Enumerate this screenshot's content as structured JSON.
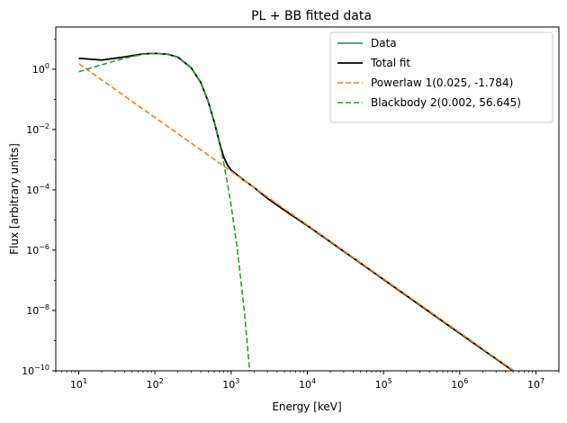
{
  "chart_data": {
    "type": "line",
    "title": "PL + BB fitted data",
    "xlabel": "Energy [keV]",
    "ylabel": "Flux [arbitrary units]",
    "xscale": "log",
    "yscale": "log",
    "xlim": [
      5,
      20000000
    ],
    "ylim": [
      1e-10,
      25
    ],
    "grid": false,
    "legend_position": "top-right",
    "x_ticks": [
      {
        "base": "10",
        "exp": "1",
        "value": 10
      },
      {
        "base": "10",
        "exp": "2",
        "value": 100
      },
      {
        "base": "10",
        "exp": "3",
        "value": 1000
      },
      {
        "base": "10",
        "exp": "4",
        "value": 10000
      },
      {
        "base": "10",
        "exp": "5",
        "value": 100000
      },
      {
        "base": "10",
        "exp": "6",
        "value": 1000000
      },
      {
        "base": "10",
        "exp": "7",
        "value": 10000000
      }
    ],
    "y_ticks": [
      {
        "base": "10",
        "exp": "0",
        "value": 1
      },
      {
        "base": "10",
        "exp": "−2",
        "value": 0.01
      },
      {
        "base": "10",
        "exp": "−4",
        "value": 0.0001
      },
      {
        "base": "10",
        "exp": "−6",
        "value": 1e-06
      },
      {
        "base": "10",
        "exp": "−8",
        "value": 1e-08
      },
      {
        "base": "10",
        "exp": "−10",
        "value": 1e-10
      }
    ],
    "series": [
      {
        "name": "Data",
        "color": "#1f77b4",
        "style": "solid",
        "x": [
          10,
          20,
          40,
          70,
          100,
          150,
          200,
          300,
          400,
          500,
          600,
          700,
          800,
          900,
          1000,
          1200,
          1500,
          2000,
          3000,
          5000,
          10000,
          100000,
          1000000,
          5000000
        ],
        "y": [
          2.3,
          2.0,
          2.55,
          3.2,
          3.35,
          3.1,
          2.5,
          1.1,
          0.36,
          0.085,
          0.018,
          0.0038,
          0.0012,
          0.00065,
          0.00045,
          0.00031,
          0.0002,
          0.00012,
          5.2e-05,
          2.1e-05,
          6.5e-06,
          1.07e-07,
          1.74e-09,
          1e-10
        ]
      },
      {
        "name": "Total fit",
        "color": "#000000",
        "style": "solid",
        "x": [
          10,
          20,
          40,
          70,
          100,
          150,
          200,
          300,
          400,
          500,
          600,
          700,
          800,
          900,
          1000,
          1200,
          1500,
          2000,
          3000,
          5000,
          10000,
          100000,
          1000000,
          5000000
        ],
        "y": [
          2.3,
          2.0,
          2.55,
          3.2,
          3.35,
          3.1,
          2.5,
          1.1,
          0.36,
          0.085,
          0.018,
          0.0038,
          0.0012,
          0.00065,
          0.00045,
          0.00031,
          0.0002,
          0.00012,
          5.2e-05,
          2.1e-05,
          6.5e-06,
          1.07e-07,
          1.74e-09,
          1e-10
        ]
      },
      {
        "name": "Powerlaw 1(0.025, -1.784)",
        "color": "#ff7f0e",
        "style": "dashed",
        "x": [
          10,
          100,
          1000,
          10000,
          100000,
          1000000,
          5000000
        ],
        "y": [
          1.52,
          0.025,
          0.00041,
          6.8e-06,
          1.12e-07,
          1.84e-09,
          1.05e-10
        ]
      },
      {
        "name": "Blackbody 2(0.002, 56.645)",
        "color": "#2ca02c",
        "style": "dashed",
        "x": [
          10,
          20,
          40,
          70,
          100,
          150,
          200,
          300,
          400,
          500,
          600,
          700,
          800,
          900,
          1000,
          1200,
          1500,
          1750
        ],
        "y": [
          0.82,
          1.4,
          2.3,
          3.15,
          3.35,
          3.1,
          2.5,
          1.1,
          0.36,
          0.085,
          0.018,
          0.0036,
          0.00075,
          0.00015,
          3e-05,
          1.2e-06,
          8e-09,
          1e-10
        ]
      }
    ]
  }
}
